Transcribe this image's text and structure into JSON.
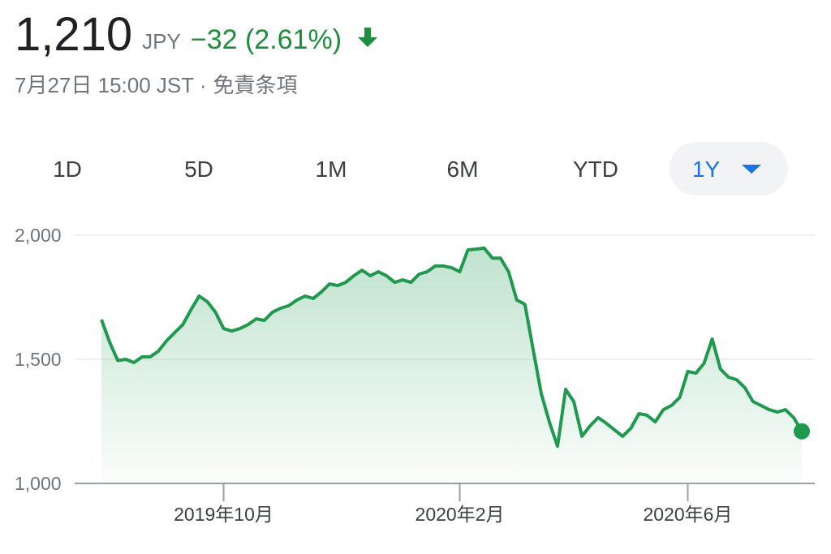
{
  "header": {
    "price": "1,210",
    "currency": "JPY",
    "change": "−32 (2.61%)",
    "timestamp": "7月27日 15:00 JST ·",
    "disclaimer": "免責条項"
  },
  "tabs": [
    "1D",
    "5D",
    "1M",
    "6M",
    "YTD",
    "1Y"
  ],
  "active_tab": 5,
  "chart_data": {
    "type": "line",
    "categories": [
      null,
      null,
      null,
      null,
      null,
      null,
      null,
      null,
      null,
      null,
      null,
      null,
      null,
      null,
      null,
      "2019年10月",
      null,
      null,
      null,
      null,
      null,
      null,
      null,
      null,
      null,
      null,
      null,
      null,
      null,
      null,
      null,
      null,
      null,
      null,
      null,
      null,
      null,
      null,
      null,
      null,
      null,
      null,
      null,
      null,
      "2020年2月",
      null,
      null,
      null,
      null,
      null,
      null,
      null,
      null,
      null,
      null,
      null,
      null,
      null,
      null,
      null,
      null,
      null,
      null,
      null,
      null,
      null,
      null,
      null,
      null,
      null,
      null,
      null,
      "2020年6月",
      null,
      null,
      null,
      null,
      null,
      null,
      null,
      null,
      null,
      null,
      null,
      null,
      null,
      null
    ],
    "series": [
      {
        "color": "#1e9a4f",
        "values": [
          1660,
          1570,
          1495,
          1500,
          1487,
          1510,
          1510,
          1533,
          1575,
          1608,
          1640,
          1700,
          1755,
          1732,
          1690,
          1624,
          1614,
          1624,
          1640,
          1663,
          1657,
          1690,
          1706,
          1716,
          1739,
          1755,
          1745,
          1771,
          1804,
          1797,
          1810,
          1837,
          1859,
          1837,
          1853,
          1837,
          1810,
          1820,
          1810,
          1843,
          1853,
          1876,
          1876,
          1869,
          1853,
          1941,
          1944,
          1948,
          1908,
          1908,
          1853,
          1739,
          1722,
          1542,
          1363,
          1248,
          1150,
          1379,
          1330,
          1190,
          1232,
          1265,
          1242,
          1216,
          1190,
          1222,
          1281,
          1275,
          1248,
          1297,
          1314,
          1346,
          1451,
          1444,
          1484,
          1582,
          1461,
          1428,
          1418,
          1386,
          1330,
          1314,
          1297,
          1288,
          1297,
          1265,
          1210
        ]
      }
    ],
    "ylim": [
      1000,
      2000
    ],
    "yticks": [
      {
        "value": 1000,
        "label": "1,000"
      },
      {
        "value": 1500,
        "label": "1,500"
      },
      {
        "value": 2000,
        "label": "2,000"
      }
    ],
    "grid": true
  }
}
